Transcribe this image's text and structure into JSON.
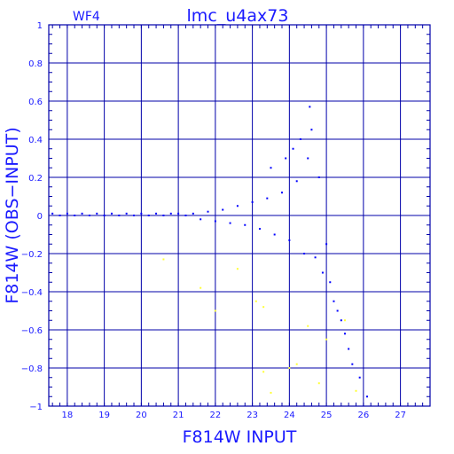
{
  "chart_data": {
    "type": "scatter",
    "title": "lmc_u4ax73",
    "subtitle": "WF4",
    "xlabel": "F814W  INPUT",
    "ylabel": "F814W  (OBS−INPUT)",
    "xlim": [
      17.5,
      27.8
    ],
    "ylim": [
      -1,
      1
    ],
    "xticks": [
      "18",
      "19",
      "20",
      "21",
      "22",
      "23",
      "24",
      "25",
      "26",
      "27"
    ],
    "yticks": [
      "1",
      "0.8",
      "0.6",
      "0.4",
      "0.2",
      "0",
      "−0.2",
      "−0.4",
      "−0.6",
      "−0.8",
      "−1"
    ],
    "grid": true,
    "colors": {
      "main": "#0000ff",
      "secondary": "#ffff33",
      "axis": "#0000aa",
      "text": "#1a1aff"
    },
    "series": [
      {
        "color": "#0000ff",
        "points": [
          [
            17.6,
            0.01
          ],
          [
            17.8,
            0.0
          ],
          [
            18.0,
            0.01
          ],
          [
            18.2,
            0.0
          ],
          [
            18.4,
            0.01
          ],
          [
            18.6,
            0.0
          ],
          [
            18.8,
            0.01
          ],
          [
            19.0,
            0.0
          ],
          [
            19.2,
            0.01
          ],
          [
            19.4,
            0.0
          ],
          [
            19.6,
            0.01
          ],
          [
            19.8,
            0.0
          ],
          [
            20.0,
            0.01
          ],
          [
            20.2,
            0.0
          ],
          [
            20.4,
            0.01
          ],
          [
            20.6,
            0.0
          ],
          [
            20.8,
            0.01
          ],
          [
            21.0,
            0.01
          ],
          [
            21.2,
            0.0
          ],
          [
            21.4,
            0.01
          ],
          [
            21.6,
            -0.02
          ],
          [
            21.8,
            0.02
          ],
          [
            22.0,
            -0.03
          ],
          [
            22.2,
            0.03
          ],
          [
            22.4,
            -0.04
          ],
          [
            22.6,
            0.05
          ],
          [
            22.8,
            -0.05
          ],
          [
            23.0,
            0.07
          ],
          [
            23.2,
            -0.07
          ],
          [
            23.4,
            0.09
          ],
          [
            23.6,
            -0.1
          ],
          [
            23.8,
            0.12
          ],
          [
            24.0,
            -0.13
          ],
          [
            24.2,
            0.18
          ],
          [
            24.4,
            -0.2
          ],
          [
            24.5,
            0.3
          ],
          [
            24.6,
            0.45
          ],
          [
            24.7,
            -0.22
          ],
          [
            24.8,
            0.2
          ],
          [
            24.9,
            -0.3
          ],
          [
            25.0,
            -0.15
          ],
          [
            25.1,
            -0.35
          ],
          [
            25.2,
            -0.45
          ],
          [
            25.3,
            -0.5
          ],
          [
            25.4,
            -0.55
          ],
          [
            25.5,
            -0.62
          ],
          [
            25.6,
            -0.7
          ],
          [
            25.7,
            -0.78
          ],
          [
            25.9,
            -0.85
          ],
          [
            26.1,
            -0.95
          ],
          [
            24.55,
            0.57
          ],
          [
            24.3,
            0.4
          ],
          [
            24.1,
            0.35
          ],
          [
            23.9,
            0.3
          ],
          [
            23.5,
            0.25
          ]
        ]
      },
      {
        "color": "#ffff33",
        "points": [
          [
            20.6,
            -0.23
          ],
          [
            21.6,
            -0.38
          ],
          [
            22.0,
            -0.5
          ],
          [
            22.6,
            -0.28
          ],
          [
            23.1,
            -0.45
          ],
          [
            23.3,
            -0.48
          ],
          [
            23.3,
            -0.82
          ],
          [
            23.5,
            -0.93
          ],
          [
            24.0,
            -0.8
          ],
          [
            24.2,
            -0.78
          ],
          [
            24.5,
            -0.58
          ],
          [
            24.8,
            -0.88
          ],
          [
            25.0,
            -0.65
          ],
          [
            25.5,
            -0.55
          ],
          [
            25.8,
            -0.92
          ]
        ]
      }
    ]
  }
}
